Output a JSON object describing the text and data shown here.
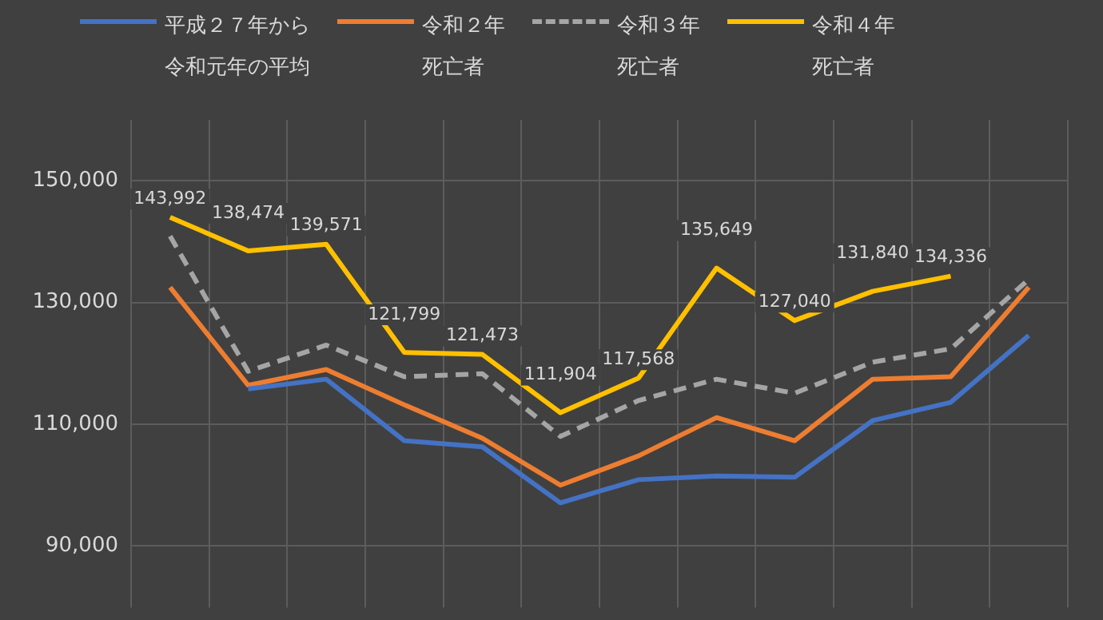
{
  "chart_data": {
    "type": "line",
    "categories": [
      null,
      null,
      null,
      null,
      null,
      null,
      null,
      null,
      null,
      null,
      null,
      null
    ],
    "series": [
      {
        "name": "平成２７年から令和元年の平均",
        "color": "#4472c4",
        "values": [
          null,
          115800,
          117400,
          107300,
          106300,
          97100,
          100900,
          101500,
          101300,
          110600,
          113600,
          124600
        ]
      },
      {
        "name": "令和２年死亡者",
        "color": "#ed7d31",
        "values": [
          132500,
          116400,
          119000,
          113200,
          107700,
          100000,
          104800,
          111100,
          107300,
          117400,
          117800,
          132500
        ]
      },
      {
        "name": "令和３年死亡者",
        "color": "#a5a5a5",
        "line_style": "dashed",
        "values": [
          140900,
          118700,
          123000,
          117800,
          118300,
          108000,
          113900,
          117400,
          115100,
          120200,
          122400,
          133800
        ]
      },
      {
        "name": "令和４年死亡者",
        "color": "#ffc000",
        "values": [
          143992,
          138474,
          139571,
          121799,
          121473,
          111904,
          117568,
          135649,
          127040,
          131840,
          134336,
          null
        ],
        "value_labels": [
          "143,992",
          "138,474",
          "139,571",
          "121,799",
          "121,473",
          "111,904",
          "117,568",
          "135,649",
          "127,040",
          "131,840",
          "134,336",
          null
        ]
      }
    ],
    "ylim": [
      82000,
      160000
    ],
    "yticks": [
      {
        "value": 90000,
        "label": "90,000"
      },
      {
        "value": 110000,
        "label": "110,000"
      },
      {
        "value": 130000,
        "label": "130,000"
      },
      {
        "value": 150000,
        "label": "150,000"
      }
    ],
    "grid": true,
    "legend": "top",
    "tick_labels": "y",
    "marker": "none",
    "line_style": "solid"
  }
}
